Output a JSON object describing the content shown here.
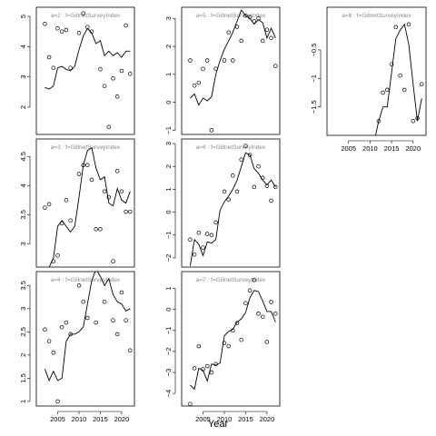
{
  "figure": {
    "xlabel": "Year"
  },
  "chart_data": [
    {
      "type": "scatter",
      "title": "a=2 : f=GillnetSurveyIndex",
      "xlim": [
        2000,
        2023
      ],
      "ylim": [
        1.1,
        5.3
      ],
      "yticks": [
        2,
        3,
        4,
        5
      ],
      "xticks": [],
      "series": [
        {
          "kind": "line",
          "x": [
            2002,
            2003,
            2004,
            2005,
            2006,
            2007,
            2008,
            2009,
            2010,
            2011,
            2012,
            2013,
            2014,
            2015,
            2016,
            2017,
            2018,
            2019,
            2020,
            2021,
            2022
          ],
          "y": [
            2.65,
            2.6,
            2.7,
            3.3,
            3.35,
            3.25,
            3.2,
            3.35,
            3.9,
            4.35,
            4.6,
            4.45,
            4.1,
            4.2,
            3.7,
            3.85,
            3.7,
            3.8,
            3.65,
            3.85,
            3.85
          ]
        },
        {
          "kind": "points",
          "x": [
            2002,
            2003,
            2004,
            2005,
            2006,
            2007,
            2008,
            2010,
            2011,
            2012,
            2013,
            2015,
            2016,
            2017,
            2018,
            2019,
            2020,
            2021,
            2022
          ],
          "y": [
            4.75,
            3.65,
            3.3,
            4.6,
            4.5,
            4.55,
            3.3,
            4.45,
            5.1,
            4.65,
            4.5,
            3.25,
            2.7,
            1.35,
            2.95,
            2.35,
            3.2,
            4.7,
            3.1
          ]
        }
      ]
    },
    {
      "type": "scatter",
      "title": "a=3 : f=GillnetSurveyIndex",
      "xlim": [
        2000,
        2023
      ],
      "ylim": [
        2.6,
        4.8
      ],
      "yticks": [
        3.0,
        3.5,
        4.0,
        4.5
      ],
      "xticks": [],
      "series": [
        {
          "kind": "line",
          "x": [
            2002,
            2003,
            2004,
            2005,
            2006,
            2007,
            2008,
            2009,
            2010,
            2011,
            2012,
            2013,
            2014,
            2015,
            2016,
            2017,
            2018,
            2019,
            2020,
            2021,
            2022
          ],
          "y": [
            2.55,
            2.6,
            2.75,
            3.3,
            3.4,
            3.3,
            3.2,
            3.3,
            3.8,
            4.35,
            4.6,
            4.65,
            4.3,
            4.1,
            4.15,
            3.7,
            3.65,
            3.95,
            3.75,
            3.7,
            3.9
          ]
        },
        {
          "kind": "points",
          "x": [
            2002,
            2003,
            2004,
            2005,
            2006,
            2007,
            2008,
            2010,
            2011,
            2012,
            2013,
            2014,
            2015,
            2016,
            2017,
            2018,
            2019,
            2020,
            2021,
            2022
          ],
          "y": [
            3.62,
            3.68,
            2.7,
            2.8,
            3.35,
            3.75,
            3.4,
            4.2,
            4.35,
            4.35,
            4.1,
            3.25,
            3.25,
            3.9,
            3.8,
            2.7,
            4.25,
            3.9,
            3.55,
            3.55
          ]
        }
      ]
    },
    {
      "type": "scatter",
      "title": "a=4 : f=GillnetSurveyIndex",
      "xlim": [
        2000,
        2023
      ],
      "ylim": [
        0.9,
        3.8
      ],
      "yticks": [
        1.0,
        1.5,
        2.0,
        2.5,
        3.0,
        3.5
      ],
      "xticks": [
        2005,
        2010,
        2015,
        2020
      ],
      "series": [
        {
          "kind": "line",
          "x": [
            2002,
            2003,
            2004,
            2005,
            2006,
            2007,
            2008,
            2009,
            2010,
            2011,
            2012,
            2013,
            2014,
            2015,
            2016,
            2017,
            2018,
            2019,
            2020,
            2021,
            2022
          ],
          "y": [
            1.7,
            1.45,
            1.65,
            1.45,
            1.5,
            2.3,
            2.45,
            2.45,
            2.5,
            2.6,
            3.1,
            3.6,
            3.85,
            3.7,
            3.5,
            3.65,
            3.3,
            3.15,
            3.1,
            2.95,
            3.0
          ]
        },
        {
          "kind": "points",
          "x": [
            2002,
            2003,
            2004,
            2005,
            2006,
            2007,
            2008,
            2010,
            2011,
            2012,
            2013,
            2014,
            2015,
            2016,
            2017,
            2018,
            2019,
            2020,
            2021,
            2022
          ],
          "y": [
            2.55,
            2.3,
            2.05,
            1.0,
            2.6,
            2.7,
            2.45,
            3.5,
            3.15,
            2.8,
            3.85,
            2.7,
            3.9,
            3.15,
            3.85,
            2.75,
            2.45,
            3.35,
            2.75,
            2.1
          ]
        }
      ]
    },
    {
      "type": "scatter",
      "title": "a=5 : f=GillnetSurveyIndex",
      "xlim": [
        2000,
        2023
      ],
      "ylim": [
        -1.15,
        3.4
      ],
      "yticks": [
        -1,
        0,
        1,
        2,
        3
      ],
      "xticks": [],
      "series": [
        {
          "kind": "line",
          "x": [
            2002,
            2003,
            2004,
            2005,
            2006,
            2007,
            2008,
            2009,
            2010,
            2011,
            2012,
            2013,
            2014,
            2015,
            2016,
            2017,
            2018,
            2019,
            2020,
            2021,
            2022
          ],
          "y": [
            0.15,
            0.3,
            -0.1,
            0.15,
            0.05,
            0.2,
            1.0,
            1.5,
            1.9,
            2.2,
            2.5,
            2.9,
            3.3,
            3.1,
            3.0,
            2.8,
            2.95,
            2.85,
            2.3,
            2.65,
            2.3
          ]
        },
        {
          "kind": "points",
          "x": [
            2002,
            2003,
            2004,
            2005,
            2006,
            2007,
            2008,
            2010,
            2011,
            2012,
            2013,
            2014,
            2015,
            2016,
            2017,
            2018,
            2019,
            2020,
            2021,
            2022
          ],
          "y": [
            1.5,
            0.6,
            0.7,
            1.2,
            1.5,
            -1.0,
            1.2,
            1.5,
            2.5,
            1.5,
            2.7,
            2.2,
            3.1,
            3.05,
            2.9,
            3.0,
            2.2,
            2.6,
            2.3,
            1.3
          ]
        }
      ]
    },
    {
      "type": "scatter",
      "title": "a=6 : f=GillnetSurveyIndex",
      "xlim": [
        2000,
        2023
      ],
      "ylim": [
        -2.4,
        3.2
      ],
      "yticks": [
        -2,
        -1,
        0,
        1,
        2,
        3
      ],
      "xticks": [],
      "series": [
        {
          "kind": "line",
          "x": [
            2002,
            2003,
            2004,
            2005,
            2006,
            2007,
            2008,
            2009,
            2010,
            2011,
            2012,
            2013,
            2014,
            2015,
            2016,
            2017,
            2018,
            2019,
            2020,
            2021,
            2022
          ],
          "y": [
            -2.35,
            -1.2,
            -1.4,
            -1.9,
            -1.3,
            -1.35,
            -1.2,
            0.1,
            0.45,
            0.7,
            1.0,
            1.4,
            2.0,
            2.6,
            2.5,
            1.9,
            1.7,
            1.4,
            1.2,
            1.4,
            1.1
          ]
        },
        {
          "kind": "points",
          "x": [
            2002,
            2003,
            2004,
            2005,
            2006,
            2007,
            2008,
            2010,
            2011,
            2012,
            2013,
            2014,
            2015,
            2016,
            2017,
            2018,
            2019,
            2020,
            2021,
            2022
          ],
          "y": [
            -1.2,
            -1.85,
            -0.9,
            -1.55,
            -0.95,
            -1.0,
            -0.45,
            0.9,
            0.55,
            1.6,
            0.9,
            2.3,
            2.9,
            2.5,
            1.1,
            2.0,
            1.5,
            1.15,
            0.5,
            1.1
          ]
        }
      ]
    },
    {
      "type": "scatter",
      "title": "a=7 : f=GillnetSurveyIndex",
      "xlim": [
        2000,
        2023
      ],
      "ylim": [
        -4.6,
        1.8
      ],
      "yticks": [
        -4,
        -3,
        -2,
        -1,
        0,
        1
      ],
      "xticks": [
        2005,
        2010,
        2015,
        2020
      ],
      "series": [
        {
          "kind": "line",
          "x": [
            2002,
            2003,
            2004,
            2005,
            2006,
            2007,
            2008,
            2009,
            2010,
            2011,
            2012,
            2013,
            2014,
            2015,
            2016,
            2017,
            2018,
            2019,
            2020,
            2021,
            2022
          ],
          "y": [
            -3.6,
            -3.8,
            -2.8,
            -2.9,
            -3.4,
            -2.6,
            -2.65,
            -2.55,
            -1.25,
            -1.05,
            -0.95,
            -0.6,
            -0.45,
            -0.15,
            0.55,
            0.9,
            0.85,
            0.4,
            -0.1,
            -0.1,
            -0.6
          ]
        },
        {
          "kind": "points",
          "x": [
            2002,
            2003,
            2004,
            2005,
            2006,
            2007,
            2008,
            2010,
            2011,
            2012,
            2013,
            2014,
            2015,
            2016,
            2017,
            2018,
            2019,
            2020,
            2021,
            2022
          ],
          "y": [
            -4.5,
            -2.8,
            -1.75,
            -2.85,
            -2.7,
            -3.0,
            -2.6,
            -1.6,
            -1.75,
            -1.0,
            -0.65,
            -1.45,
            0.3,
            0.9,
            1.4,
            -0.2,
            -0.35,
            -1.55,
            0.35,
            -0.2
          ]
        }
      ]
    },
    {
      "type": "scatter",
      "title": "a=8 : f=GillnetSurveyIndex",
      "xlim": [
        2000,
        2023
      ],
      "ylim": [
        -2.0,
        0.25
      ],
      "yticks": [
        -1.5,
        -1.0,
        -0.5
      ],
      "xticks": [
        2005,
        2010,
        2015,
        2020
      ],
      "series": [
        {
          "kind": "line",
          "x": [
            2011,
            2012,
            2013,
            2014,
            2015,
            2016,
            2017,
            2018,
            2019,
            2020,
            2021,
            2022
          ],
          "y": [
            -2.1,
            -1.75,
            -1.5,
            -1.5,
            -0.9,
            -0.3,
            -0.15,
            -0.05,
            -0.4,
            -1.1,
            -1.75,
            -1.35
          ]
        },
        {
          "kind": "points",
          "x": [
            2012,
            2013,
            2014,
            2015,
            2016,
            2017,
            2018,
            2019,
            2020,
            2021,
            2022
          ],
          "y": [
            -1.75,
            -1.25,
            -1.2,
            -0.75,
            -0.1,
            -0.95,
            -1.2,
            -0.05,
            -1.75,
            -1.7,
            -1.1
          ]
        }
      ]
    }
  ]
}
